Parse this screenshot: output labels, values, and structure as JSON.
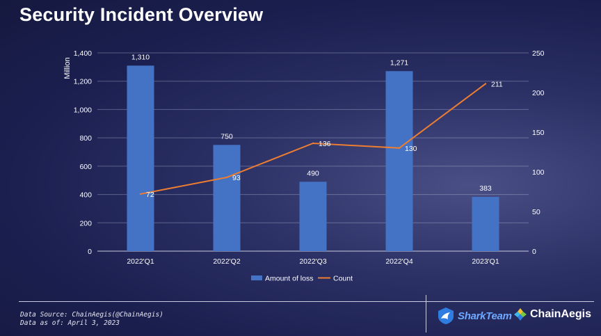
{
  "title": "Security Incident Overview",
  "chart_data": {
    "type": "bar+line",
    "categories": [
      "2022'Q1",
      "2022'Q2",
      "2022'Q3",
      "2022'Q4",
      "2023'Q1"
    ],
    "series": [
      {
        "name": "Amount of loss",
        "type": "bar",
        "axis": "left",
        "values": [
          1310,
          750,
          490,
          1271,
          383
        ],
        "labels": [
          "1,310",
          "750",
          "490",
          "1,271",
          "383"
        ],
        "color": "#4472c4"
      },
      {
        "name": "Count",
        "type": "line",
        "axis": "right",
        "values": [
          72,
          93,
          136,
          130,
          211
        ],
        "labels": [
          "72",
          "93",
          "136",
          "130",
          "211"
        ],
        "color": "#ed7d31"
      }
    ],
    "ylabel": "Million",
    "ylim": [
      0,
      1400
    ],
    "yticks": [
      "0",
      "200",
      "400",
      "600",
      "800",
      "1,000",
      "1,200",
      "1,400"
    ],
    "y2lim": [
      0,
      250
    ],
    "y2ticks": [
      "0",
      "50",
      "100",
      "150",
      "200",
      "250"
    ],
    "legend": "bottom",
    "grid": true
  },
  "footer": {
    "source": "Data Source: ChainAegis(@ChainAegis)",
    "asof": "Data as of: April 3, 2023"
  },
  "logos": {
    "shark": "SharkTeam",
    "chain": "ChainAegis"
  }
}
